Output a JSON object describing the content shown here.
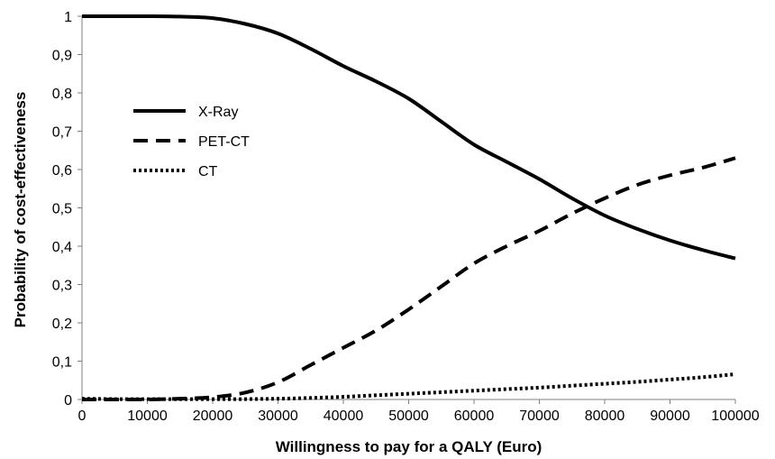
{
  "chart_data": {
    "type": "line",
    "title": "",
    "xlabel": "Willingness to pay for a QALY (Euro)",
    "ylabel": "Probability of cost-effectiveness",
    "xlim": [
      0,
      100000
    ],
    "ylim": [
      0,
      1
    ],
    "grid": false,
    "legend_position": "left",
    "x_ticks": [
      {
        "value": 0,
        "label": "0"
      },
      {
        "value": 10000,
        "label": "10000"
      },
      {
        "value": 20000,
        "label": "20000"
      },
      {
        "value": 30000,
        "label": "30000"
      },
      {
        "value": 40000,
        "label": "40000"
      },
      {
        "value": 50000,
        "label": "50000"
      },
      {
        "value": 60000,
        "label": "60000"
      },
      {
        "value": 70000,
        "label": "70000"
      },
      {
        "value": 80000,
        "label": "80000"
      },
      {
        "value": 90000,
        "label": "90000"
      },
      {
        "value": 100000,
        "label": "100000"
      }
    ],
    "y_ticks": [
      {
        "value": 0,
        "label": "0"
      },
      {
        "value": 0.1,
        "label": "0,1"
      },
      {
        "value": 0.2,
        "label": "0,2"
      },
      {
        "value": 0.3,
        "label": "0,3"
      },
      {
        "value": 0.4,
        "label": "0,4"
      },
      {
        "value": 0.5,
        "label": "0,5"
      },
      {
        "value": 0.6,
        "label": "0,6"
      },
      {
        "value": 0.7,
        "label": "0,7"
      },
      {
        "value": 0.8,
        "label": "0,8"
      },
      {
        "value": 0.9,
        "label": "0,9"
      },
      {
        "value": 1,
        "label": "1"
      }
    ],
    "x": [
      0,
      5000,
      10000,
      15000,
      20000,
      25000,
      30000,
      35000,
      40000,
      45000,
      50000,
      55000,
      60000,
      65000,
      70000,
      75000,
      80000,
      85000,
      90000,
      95000,
      100000
    ],
    "series": [
      {
        "name": "X-Ray",
        "style": "solid",
        "color": "#000000",
        "values": [
          1.0,
          1.0,
          1.0,
          0.999,
          0.995,
          0.98,
          0.955,
          0.915,
          0.87,
          0.83,
          0.785,
          0.725,
          0.665,
          0.62,
          0.575,
          0.525,
          0.48,
          0.445,
          0.415,
          0.39,
          0.368
        ]
      },
      {
        "name": "PET-CT",
        "style": "dashed",
        "color": "#000000",
        "values": [
          0.0,
          0.0,
          0.0,
          0.002,
          0.006,
          0.018,
          0.045,
          0.09,
          0.135,
          0.18,
          0.235,
          0.295,
          0.355,
          0.4,
          0.44,
          0.485,
          0.525,
          0.56,
          0.585,
          0.605,
          0.63
        ]
      },
      {
        "name": "CT",
        "style": "dotted",
        "color": "#000000",
        "values": [
          0.002,
          0.001,
          0.001,
          0.001,
          0.001,
          0.001,
          0.002,
          0.004,
          0.007,
          0.011,
          0.015,
          0.019,
          0.023,
          0.027,
          0.031,
          0.036,
          0.041,
          0.046,
          0.052,
          0.058,
          0.066
        ]
      }
    ]
  }
}
